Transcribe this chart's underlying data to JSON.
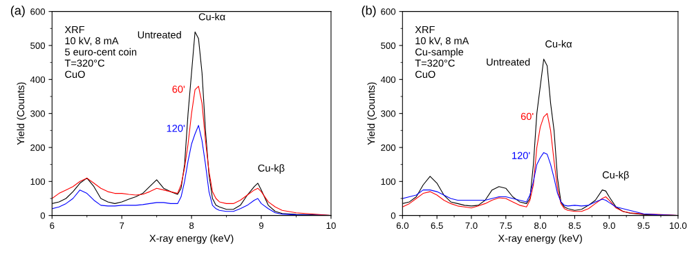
{
  "chart_data": [
    {
      "type": "line",
      "title": "(a)",
      "xlabel": "X-ray energy (keV)",
      "ylabel": "Yield (Counts)",
      "x": [
        6.0,
        6.1,
        6.2,
        6.3,
        6.4,
        6.5,
        6.6,
        6.7,
        6.8,
        6.9,
        7.0,
        7.1,
        7.2,
        7.3,
        7.4,
        7.5,
        7.6,
        7.7,
        7.8,
        7.85,
        7.9,
        7.95,
        8.0,
        8.05,
        8.1,
        8.15,
        8.2,
        8.25,
        8.3,
        8.35,
        8.4,
        8.5,
        8.6,
        8.7,
        8.8,
        8.9,
        8.95,
        9.0,
        9.1,
        9.2,
        9.3,
        9.5,
        9.7,
        10.0
      ],
      "series": [
        {
          "name": "Untreated",
          "color": "#000000",
          "values": [
            35,
            40,
            50,
            70,
            95,
            110,
            85,
            50,
            40,
            35,
            40,
            48,
            55,
            65,
            85,
            105,
            80,
            70,
            62,
            80,
            150,
            300,
            420,
            540,
            520,
            420,
            250,
            120,
            50,
            30,
            25,
            18,
            18,
            30,
            60,
            85,
            95,
            75,
            30,
            12,
            6,
            3,
            2,
            0
          ]
        },
        {
          "name": "60'",
          "color": "#ff0000",
          "values": [
            50,
            65,
            75,
            85,
            100,
            110,
            95,
            80,
            70,
            65,
            65,
            62,
            60,
            62,
            70,
            80,
            75,
            70,
            65,
            90,
            140,
            210,
            300,
            370,
            380,
            330,
            220,
            130,
            70,
            50,
            40,
            35,
            35,
            45,
            60,
            75,
            80,
            70,
            40,
            25,
            15,
            8,
            5,
            0
          ]
        },
        {
          "name": "120'",
          "color": "#0000ff",
          "values": [
            20,
            25,
            35,
            50,
            75,
            65,
            45,
            30,
            28,
            28,
            30,
            30,
            30,
            32,
            35,
            38,
            38,
            35,
            35,
            55,
            100,
            160,
            210,
            240,
            265,
            220,
            150,
            70,
            30,
            20,
            15,
            12,
            12,
            20,
            30,
            45,
            50,
            35,
            20,
            8,
            4,
            2,
            1,
            0
          ]
        }
      ],
      "xlim": [
        6,
        10
      ],
      "xticks": [
        6,
        7,
        8,
        9,
        10
      ],
      "ylim": [
        0,
        600
      ],
      "yticks": [
        0,
        100,
        200,
        300,
        400,
        500,
        600
      ],
      "annotations": [
        "XRF",
        "10 kV, 8 mA",
        "5 euro-cent coin",
        "T=320°C",
        "CuO",
        {
          "text": "Cu-kα",
          "x": 8.1,
          "y": 540
        },
        {
          "text": "Cu-kβ",
          "x": 8.95,
          "y": 95
        }
      ],
      "legend": false,
      "grid": false
    },
    {
      "type": "line",
      "title": "(b)",
      "xlabel": "X-ray energy (keV)",
      "ylabel": "Yield (Counts)",
      "x": [
        6.0,
        6.1,
        6.2,
        6.3,
        6.4,
        6.5,
        6.6,
        6.7,
        6.8,
        6.9,
        7.0,
        7.1,
        7.2,
        7.3,
        7.4,
        7.5,
        7.6,
        7.7,
        7.8,
        7.85,
        7.9,
        7.95,
        8.0,
        8.05,
        8.1,
        8.15,
        8.2,
        8.25,
        8.3,
        8.35,
        8.4,
        8.5,
        8.6,
        8.7,
        8.8,
        8.9,
        8.95,
        9.0,
        9.1,
        9.2,
        9.3,
        9.5,
        9.7,
        10.0
      ],
      "series": [
        {
          "name": "Untreated",
          "color": "#000000",
          "values": [
            35,
            40,
            55,
            90,
            115,
            95,
            60,
            40,
            35,
            30,
            28,
            30,
            45,
            75,
            85,
            80,
            55,
            40,
            35,
            50,
            150,
            300,
            380,
            460,
            440,
            330,
            250,
            110,
            40,
            25,
            20,
            15,
            18,
            30,
            45,
            75,
            72,
            55,
            25,
            12,
            7,
            3,
            1,
            0
          ]
        },
        {
          "name": "60'",
          "color": "#ff0000",
          "values": [
            25,
            35,
            50,
            65,
            70,
            60,
            45,
            35,
            28,
            25,
            22,
            28,
            35,
            45,
            52,
            50,
            40,
            30,
            25,
            45,
            90,
            200,
            260,
            290,
            300,
            250,
            160,
            80,
            35,
            20,
            15,
            12,
            12,
            20,
            35,
            50,
            55,
            45,
            22,
            12,
            8,
            4,
            3,
            0
          ]
        },
        {
          "name": "120'",
          "color": "#0000ff",
          "values": [
            50,
            55,
            60,
            75,
            75,
            70,
            60,
            50,
            45,
            45,
            45,
            45,
            45,
            50,
            55,
            55,
            50,
            45,
            40,
            60,
            100,
            150,
            170,
            185,
            180,
            150,
            110,
            65,
            40,
            30,
            28,
            30,
            28,
            30,
            40,
            48,
            45,
            38,
            25,
            20,
            15,
            5,
            2,
            0
          ]
        }
      ],
      "xlim": [
        6,
        10
      ],
      "xticks": [
        {
          "value": 6,
          "label": "6.0"
        },
        {
          "value": 6.5,
          "label": "6.5"
        },
        {
          "value": 7,
          "label": "7.0"
        },
        {
          "value": 7.5,
          "label": "7.5"
        },
        {
          "value": 8,
          "label": "8.0"
        },
        {
          "value": 8.5,
          "label": "8.5"
        },
        {
          "value": 9,
          "label": "9.0"
        },
        {
          "value": 9.5,
          "label": "9.5"
        },
        {
          "value": 10,
          "label": "10.0"
        }
      ],
      "ylim": [
        0,
        600
      ],
      "yticks": [
        0,
        100,
        200,
        300,
        400,
        500,
        600
      ],
      "annotations": [
        "XRF",
        "10 kV, 8 mA",
        "Cu-sample",
        "T=320°C",
        "CuO",
        {
          "text": "Cu-kα",
          "x": 8.07,
          "y": 460
        },
        {
          "text": "Cu-kβ",
          "x": 8.9,
          "y": 75
        }
      ],
      "legend": false,
      "grid": false
    }
  ]
}
